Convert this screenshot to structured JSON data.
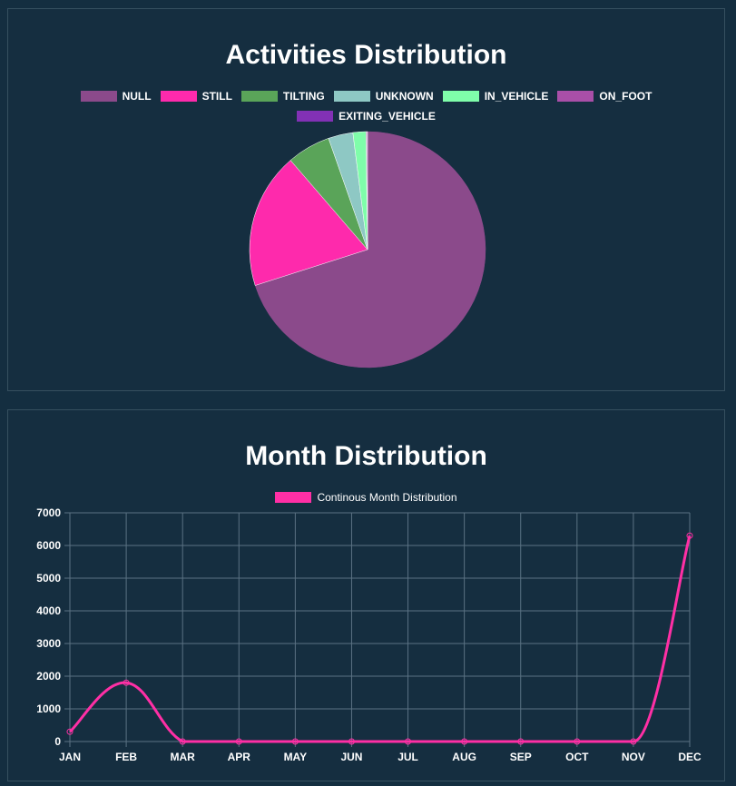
{
  "colors": {
    "background": "#142e40",
    "grid": "#5b7283",
    "line": "#ff2fa5"
  },
  "chart_data": [
    {
      "type": "pie",
      "title": "Activities Distribution",
      "series": [
        {
          "name": "NULL",
          "value": 70.5,
          "color": "#8b4a8b"
        },
        {
          "name": "STILL",
          "value": 18.7,
          "color": "#fe2aac"
        },
        {
          "name": "TILTING",
          "value": 6.0,
          "color": "#5aa459"
        },
        {
          "name": "UNKNOWN",
          "value": 3.4,
          "color": "#8ec8c4"
        },
        {
          "name": "IN_VEHICLE",
          "value": 1.8,
          "color": "#7ffdaa"
        },
        {
          "name": "ON_FOOT",
          "value": 0.15,
          "color": "#a94fa8"
        },
        {
          "name": "EXITING_VEHICLE",
          "value": 0.05,
          "color": "#8231b5"
        }
      ]
    },
    {
      "type": "line",
      "title": "Month Distribution",
      "categories": [
        "JAN",
        "FEB",
        "MAR",
        "APR",
        "MAY",
        "JUN",
        "JUL",
        "AUG",
        "SEP",
        "OCT",
        "NOV",
        "DEC"
      ],
      "series": [
        {
          "name": "Continous Month Distribution",
          "values": [
            300,
            1800,
            0,
            0,
            0,
            0,
            0,
            0,
            0,
            0,
            0,
            6300
          ],
          "color": "#ff2fa5"
        }
      ],
      "ylim": [
        0,
        7000
      ],
      "yticks": [
        0,
        1000,
        2000,
        3000,
        4000,
        5000,
        6000,
        7000
      ],
      "grid": true,
      "legend": "top-center"
    }
  ]
}
